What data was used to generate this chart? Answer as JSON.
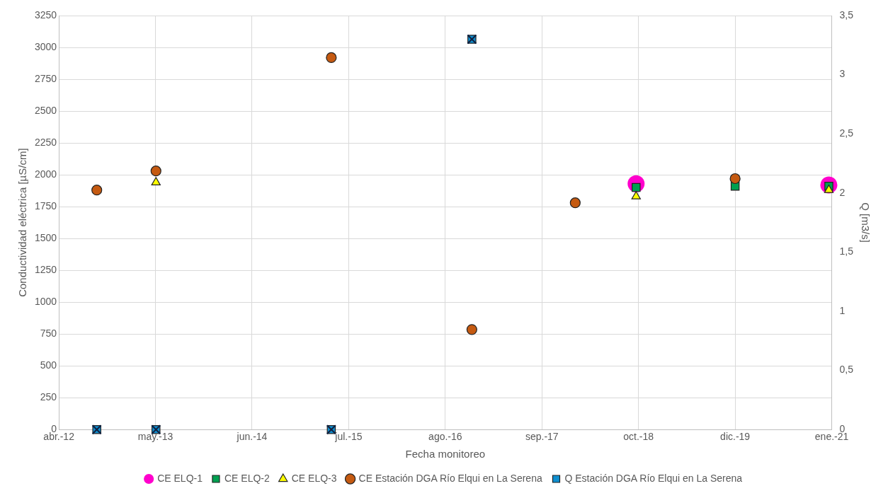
{
  "chart_data": {
    "type": "scatter",
    "xlabel": "Fecha monitoreo",
    "ylabel": "Conductividad eléctrica [µS/cm]",
    "y2label": "Q [m3/s]",
    "xlim": [
      "2012-04-01",
      "2021-01-04"
    ],
    "xticks": [
      {
        "value": "2012-04-01",
        "label": "abr.-12"
      },
      {
        "value": "2013-05-06",
        "label": "may.-13"
      },
      {
        "value": "2014-06-10",
        "label": "jun.-14"
      },
      {
        "value": "2015-07-15",
        "label": "jul.-15"
      },
      {
        "value": "2016-08-18",
        "label": "ago.-16"
      },
      {
        "value": "2017-09-22",
        "label": "sep.-17"
      },
      {
        "value": "2018-10-27",
        "label": "oct.-18"
      },
      {
        "value": "2019-12-01",
        "label": "dic.-19"
      },
      {
        "value": "2021-01-04",
        "label": "ene.-21"
      }
    ],
    "ylim": [
      0,
      3250
    ],
    "yticks": [
      0,
      250,
      500,
      750,
      1000,
      1250,
      1500,
      1750,
      2000,
      2250,
      2500,
      2750,
      3000,
      3250
    ],
    "y2lim": [
      0,
      3.5
    ],
    "y2ticks": [
      {
        "value": 0,
        "label": "0"
      },
      {
        "value": 0.5,
        "label": "0,5"
      },
      {
        "value": 1,
        "label": "1"
      },
      {
        "value": 1.5,
        "label": "1,5"
      },
      {
        "value": 2,
        "label": "2"
      },
      {
        "value": 2.5,
        "label": "2,5"
      },
      {
        "value": 3,
        "label": "3"
      },
      {
        "value": 3.5,
        "label": "3,5"
      }
    ],
    "grid": true,
    "legend": "bottom",
    "series": [
      {
        "name": "CE ELQ-1",
        "color": "#ff00cc",
        "marker": "circle",
        "x": [
          "2018-10-17",
          "2020-12-23"
        ],
        "values": [
          1930,
          1920
        ]
      },
      {
        "name": "CE ELQ-2",
        "color": "#00a050",
        "marker": "square",
        "x": [
          "2018-10-17",
          "2019-12-01",
          "2020-12-23"
        ],
        "values": [
          1900,
          1910,
          1910
        ]
      },
      {
        "name": "CE ELQ-3",
        "color": "#ffff00",
        "marker": "triangle",
        "x": [
          "2013-05-08",
          "2018-10-17",
          "2020-12-23"
        ],
        "values": [
          1940,
          1830,
          1880
        ]
      },
      {
        "name": "CE Estación DGA Río Elqui en La Serena",
        "color": "#c55a11",
        "marker": "circle",
        "x": [
          "2012-09-05",
          "2013-05-08",
          "2015-05-04",
          "2016-12-06",
          "2018-02-07",
          "2019-12-01"
        ],
        "values": [
          1880,
          2030,
          2920,
          785,
          1780,
          1970
        ]
      },
      {
        "name": "Q Estación DGA Río Elqui en La Serena",
        "color": "#0f8fd0",
        "marker": "square",
        "axis": "y2",
        "x": [
          "2012-09-05",
          "2013-05-08",
          "2015-05-04",
          "2016-12-06"
        ],
        "values": [
          0,
          0,
          0,
          3.3
        ]
      }
    ]
  }
}
